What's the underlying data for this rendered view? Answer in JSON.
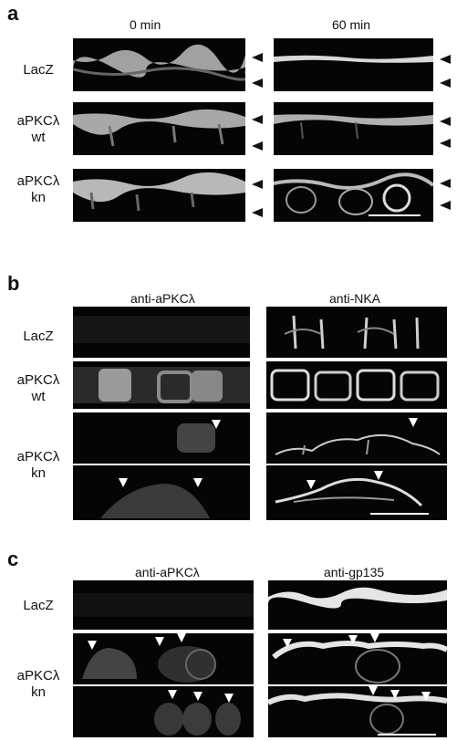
{
  "panels": {
    "a": {
      "label": "a",
      "col_headers": [
        "0 min",
        "60 min"
      ],
      "rows": [
        {
          "line1": "LacZ",
          "line2": ""
        },
        {
          "line1": "aPKCλ",
          "line2": "wt"
        },
        {
          "line1": "aPKCλ",
          "line2": "kn"
        }
      ]
    },
    "b": {
      "label": "b",
      "col_headers": [
        "anti-aPKCλ",
        "anti-NKA"
      ],
      "rows": [
        {
          "line1": "LacZ",
          "line2": ""
        },
        {
          "line1": "aPKCλ",
          "line2": "wt"
        },
        {
          "line1": "aPKCλ",
          "line2": "kn"
        }
      ]
    },
    "c": {
      "label": "c",
      "col_headers": [
        "anti-aPKCλ",
        "anti-gp135"
      ],
      "rows": [
        {
          "line1": "LacZ",
          "line2": ""
        },
        {
          "line1": "aPKCλ",
          "line2": "kn"
        }
      ]
    }
  }
}
